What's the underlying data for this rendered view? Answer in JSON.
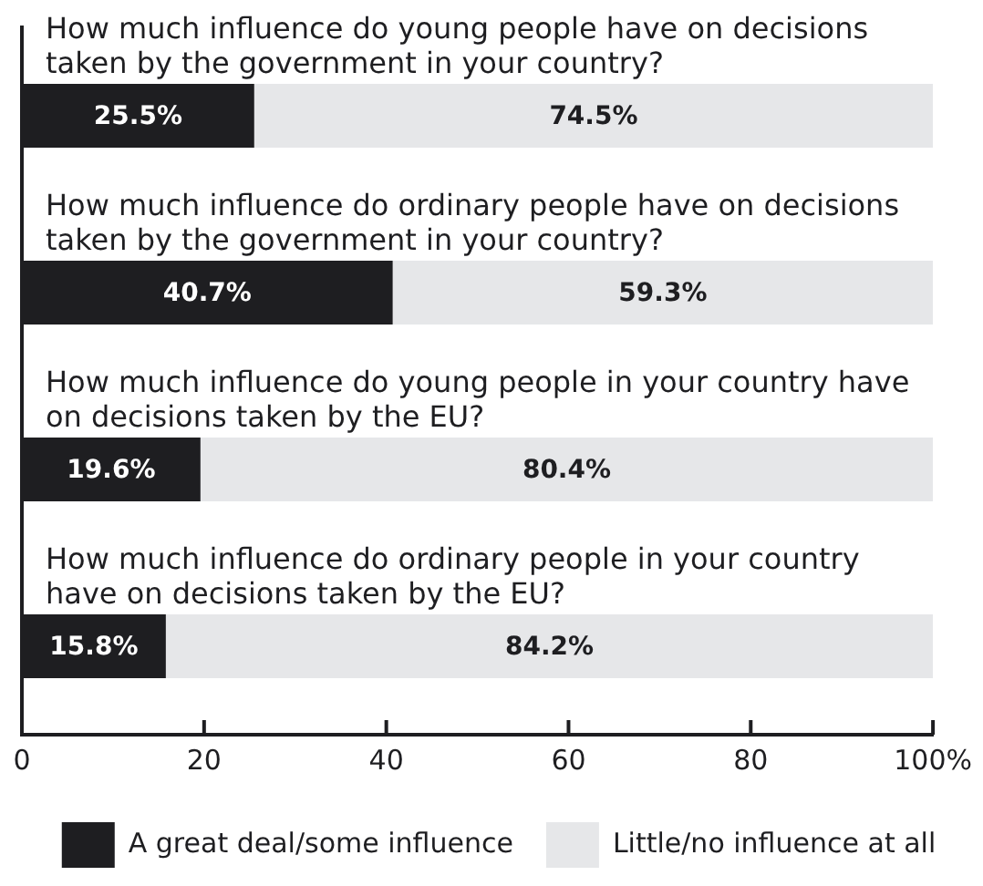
{
  "chart_data": {
    "type": "bar",
    "orientation": "horizontal",
    "stacked": true,
    "categories": [
      "How much influence do young people have on decisions taken by the government in your country?",
      "How much influence do ordinary people have on decisions taken by the government in your country?",
      "How much influence do young people in your country have on decisions taken by the EU?",
      "How much influence do ordinary people in your country have on decisions taken by the EU?"
    ],
    "series": [
      {
        "name": "A great deal/some influence",
        "color": "#1e1e21",
        "values": [
          25.5,
          40.7,
          19.6,
          15.8
        ],
        "value_labels": [
          "25.5%",
          "40.7%",
          "19.6%",
          "15.8%"
        ]
      },
      {
        "name": "Little/no influence at all",
        "color": "#e6e7e9",
        "values": [
          74.5,
          59.3,
          80.4,
          84.2
        ],
        "value_labels": [
          "74.5%",
          "59.3%",
          "80.4%",
          "84.2%"
        ]
      }
    ],
    "xlim": [
      0,
      100
    ],
    "xticks": [
      0,
      20,
      40,
      60,
      80,
      {
        "value": 100,
        "label": "100%"
      }
    ],
    "legend": "bottom"
  }
}
